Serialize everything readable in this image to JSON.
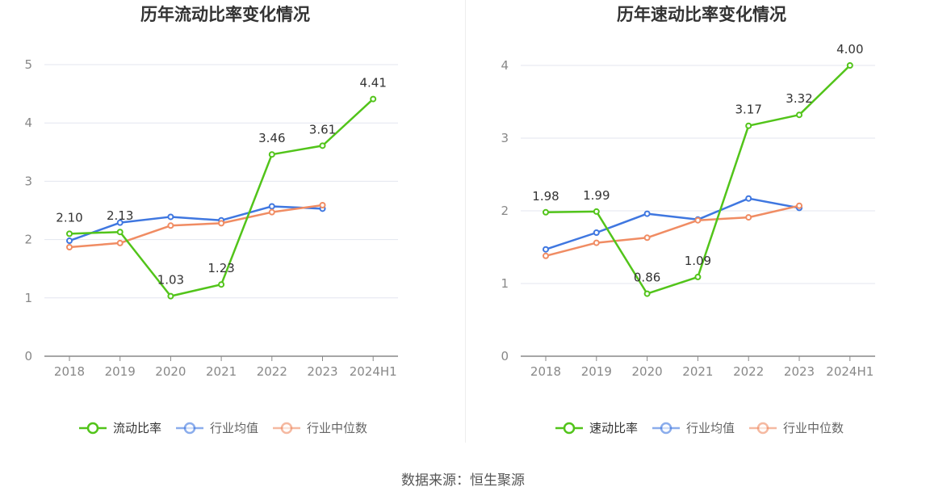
{
  "colors": {
    "primary": "#52c41a",
    "average": "#3f77e0",
    "median": "#f08c63"
  },
  "source": "数据来源：恒生聚源",
  "chart_data": [
    {
      "type": "line",
      "title": "历年流动比率变化情况",
      "categories": [
        "2018",
        "2019",
        "2020",
        "2021",
        "2022",
        "2023",
        "2024H1"
      ],
      "ylim": [
        0,
        5
      ],
      "yticks": [
        0,
        1,
        2,
        3,
        4,
        5
      ],
      "grid": true,
      "legend_position": "bottom",
      "series": [
        {
          "name": "流动比率",
          "role": "primary",
          "values": [
            2.1,
            2.13,
            1.03,
            1.23,
            3.46,
            3.61,
            4.41
          ],
          "labels": [
            "2.10",
            "2.13",
            "1.03",
            "1.23",
            "3.46",
            "3.61",
            "4.41"
          ]
        },
        {
          "name": "行业均值",
          "role": "average",
          "values": [
            1.98,
            2.29,
            2.39,
            2.33,
            2.57,
            2.53,
            null
          ]
        },
        {
          "name": "行业中位数",
          "role": "median",
          "values": [
            1.87,
            1.94,
            2.24,
            2.28,
            2.47,
            2.59,
            null
          ]
        }
      ]
    },
    {
      "type": "line",
      "title": "历年速动比率变化情况",
      "categories": [
        "2018",
        "2019",
        "2020",
        "2021",
        "2022",
        "2023",
        "2024H1"
      ],
      "ylim": [
        0,
        4
      ],
      "yticks": [
        0,
        1,
        2,
        3,
        4
      ],
      "grid": true,
      "legend_position": "bottom",
      "series": [
        {
          "name": "速动比率",
          "role": "primary",
          "values": [
            1.98,
            1.99,
            0.86,
            1.09,
            3.17,
            3.32,
            4.0
          ],
          "labels": [
            "1.98",
            "1.99",
            "0.86",
            "1.09",
            "3.17",
            "3.32",
            "4.00"
          ]
        },
        {
          "name": "行业均值",
          "role": "average",
          "values": [
            1.47,
            1.7,
            1.96,
            1.88,
            2.17,
            2.04,
            null
          ]
        },
        {
          "name": "行业中位数",
          "role": "median",
          "values": [
            1.38,
            1.56,
            1.63,
            1.87,
            1.91,
            2.07,
            null
          ]
        }
      ]
    }
  ]
}
